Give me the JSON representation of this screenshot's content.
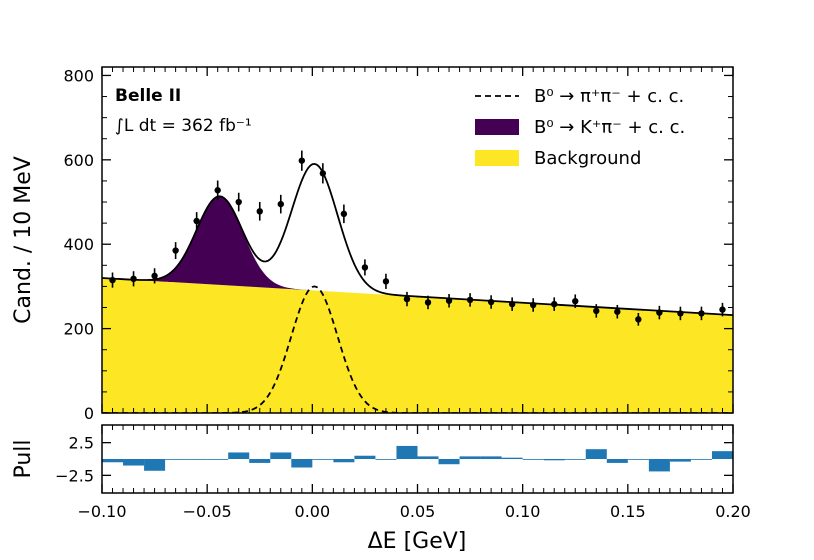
{
  "chart_data": {
    "type": "line",
    "experiment_label": "Belle II",
    "luminosity_label": "∫L dt = 362 fb⁻¹",
    "xlabel": "ΔE [GeV]",
    "ylabel": "Cand. / 10 MeV",
    "pull_ylabel": "Pull",
    "xlim": [
      -0.1,
      0.2
    ],
    "ylim": [
      0,
      820
    ],
    "pull_ylim": [
      -5.2,
      5.2
    ],
    "x_ticks": [
      -0.1,
      -0.05,
      0.0,
      0.05,
      0.1,
      0.15,
      0.2
    ],
    "x_tick_labels": [
      "−0.10",
      "−0.05",
      "0.00",
      "0.05",
      "0.10",
      "0.15",
      "0.20"
    ],
    "y_ticks": [
      0,
      200,
      400,
      600,
      800
    ],
    "y_tick_labels": [
      "0",
      "200",
      "400",
      "600",
      "800"
    ],
    "pull_ticks": [
      2.5,
      -2.5
    ],
    "pull_tick_labels": [
      "2.5",
      "−2.5"
    ],
    "legend": [
      {
        "label": "B⁰ → π⁺π⁻ + c. c.",
        "style": "dashed"
      },
      {
        "label": "B⁰ → K⁺π⁻ + c. c.",
        "color": "#440154"
      },
      {
        "label": "Background",
        "color": "#fde725"
      }
    ],
    "colors": {
      "kpi": "#440154",
      "background": "#fde725",
      "fit": "#000000",
      "data": "#000000",
      "pull": "#1f77b4"
    },
    "model": {
      "background_at_xmin": 320,
      "background_at_xmax": 232,
      "kpi_peak_height": 210,
      "kpi_mean": -0.044,
      "kpi_sigma": 0.011,
      "pipi_peak_height": 300,
      "pipi_mean": 0.001,
      "pipi_sigma": 0.011
    },
    "data_points": {
      "x": [
        -0.095,
        -0.085,
        -0.075,
        -0.065,
        -0.055,
        -0.045,
        -0.035,
        -0.025,
        -0.015,
        -0.005,
        0.005,
        0.015,
        0.025,
        0.035,
        0.045,
        0.055,
        0.065,
        0.075,
        0.085,
        0.095,
        0.105,
        0.115,
        0.125,
        0.135,
        0.145,
        0.155,
        0.165,
        0.175,
        0.185,
        0.195
      ],
      "y": [
        315,
        318,
        325,
        385,
        455,
        528,
        500,
        478,
        495,
        598,
        568,
        472,
        345,
        312,
        270,
        262,
        266,
        268,
        263,
        258,
        256,
        258,
        265,
        242,
        240,
        222,
        238,
        236,
        236,
        245
      ],
      "yerr": [
        18,
        18,
        18,
        20,
        21,
        23,
        22,
        22,
        22,
        24,
        24,
        22,
        19,
        18,
        17,
        16,
        16,
        16,
        16,
        16,
        16,
        16,
        16,
        16,
        16,
        15,
        16,
        16,
        16,
        16
      ]
    },
    "pulls": {
      "x": [
        -0.095,
        -0.085,
        -0.075,
        -0.065,
        -0.055,
        -0.045,
        -0.035,
        -0.025,
        -0.015,
        -0.005,
        0.005,
        0.015,
        0.025,
        0.035,
        0.045,
        0.055,
        0.065,
        0.075,
        0.085,
        0.095,
        0.105,
        0.115,
        0.125,
        0.135,
        0.145,
        0.155,
        0.165,
        0.175,
        0.185,
        0.195
      ],
      "values": [
        -0.5,
        -1.0,
        -1.8,
        0.0,
        0.0,
        0.0,
        1.0,
        -0.6,
        1.0,
        -1.3,
        0.0,
        -0.5,
        0.5,
        0.0,
        2.0,
        0.4,
        -0.8,
        0.4,
        0.4,
        0.2,
        0.0,
        -0.2,
        0.0,
        1.5,
        -0.6,
        0.0,
        -1.9,
        -0.4,
        0.0,
        1.2
      ]
    }
  }
}
